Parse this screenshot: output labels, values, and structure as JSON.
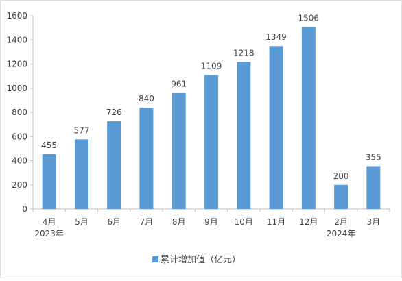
{
  "chart_data": {
    "type": "bar",
    "categories": [
      "4月",
      "5月",
      "6月",
      "7月",
      "8月",
      "9月",
      "10月",
      "11月",
      "12月",
      "2月",
      "3月"
    ],
    "year_labels": [
      {
        "category_index": 0,
        "text": "2023年"
      },
      {
        "category_index": 9,
        "text": "2024年"
      }
    ],
    "series": [
      {
        "name": "累计增加值（亿元）",
        "values": [
          455,
          577,
          726,
          840,
          961,
          1109,
          1218,
          1349,
          1506,
          200,
          355
        ],
        "color": "#5b9bd5"
      }
    ],
    "ylim": [
      0,
      1600
    ],
    "yticks": [
      0,
      200,
      400,
      600,
      800,
      1000,
      1200,
      1400,
      1600
    ],
    "grid": false,
    "legend_position": "bottom"
  }
}
